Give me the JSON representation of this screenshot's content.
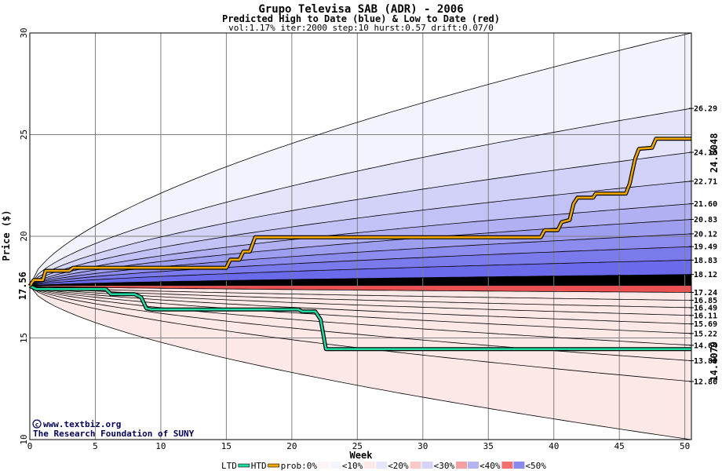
{
  "chart_data": {
    "type": "area",
    "title": "Grupo Televisa SAB (ADR) - 2006",
    "subtitle": "Predicted High to Date (blue) &  Low to Date (red)",
    "params": "vol:1.17% iter:2000 step:10 hurst:0.57 drift:0.07/0",
    "xlabel": "Week",
    "ylabel": "Price ($)",
    "xlim": [
      0,
      50.5
    ],
    "ylim": [
      10,
      30
    ],
    "x_ticks": [
      0,
      5,
      10,
      15,
      20,
      25,
      30,
      35,
      40,
      45,
      50
    ],
    "y_ticks": [
      10,
      15,
      20,
      25,
      30
    ],
    "grid": true,
    "start_price": 17.56,
    "start_price_label": "17.56",
    "right_levels": [
      26.29,
      24.13,
      22.71,
      21.6,
      20.83,
      20.12,
      19.49,
      18.83,
      18.12,
      17.24,
      16.85,
      16.49,
      16.11,
      15.69,
      15.22,
      14.64,
      13.88,
      12.86
    ],
    "right_level_labels": [
      "26.29",
      "24.13",
      "22.71",
      "21.60",
      "20.83",
      "20.12",
      "19.49",
      "18.83",
      "18.12",
      "17.24",
      "16.85",
      "16.49",
      "16.11",
      "15.69",
      "15.22",
      "14.64",
      "13.88",
      "12.86"
    ],
    "outer_upper_end": 30.0,
    "outer_lower_end": 10.0,
    "htd_final": 24.8048,
    "htd_final_label": "24.8048",
    "ltd_final": 14.4079,
    "ltd_final_label": "14.4079",
    "htd_path": [
      [
        0,
        17.56
      ],
      [
        0.3,
        17.85
      ],
      [
        1,
        17.85
      ],
      [
        1.2,
        18.3
      ],
      [
        3,
        18.3
      ],
      [
        3.3,
        18.45
      ],
      [
        15,
        18.45
      ],
      [
        15.3,
        18.85
      ],
      [
        16,
        18.85
      ],
      [
        16.3,
        19.25
      ],
      [
        16.8,
        19.25
      ],
      [
        17.2,
        19.95
      ],
      [
        39,
        19.95
      ],
      [
        39.3,
        20.3
      ],
      [
        40.3,
        20.3
      ],
      [
        40.6,
        20.7
      ],
      [
        41.2,
        20.8
      ],
      [
        41.5,
        21.6
      ],
      [
        41.8,
        21.9
      ],
      [
        43,
        21.9
      ],
      [
        43.2,
        22.1
      ],
      [
        45.5,
        22.1
      ],
      [
        45.8,
        22.6
      ],
      [
        46.2,
        23.8
      ],
      [
        46.5,
        24.3
      ],
      [
        47.5,
        24.35
      ],
      [
        47.8,
        24.8
      ],
      [
        50.5,
        24.8
      ]
    ],
    "ltd_path": [
      [
        0,
        17.56
      ],
      [
        0.5,
        17.4
      ],
      [
        5.8,
        17.4
      ],
      [
        6.2,
        17.15
      ],
      [
        8,
        17.15
      ],
      [
        8.5,
        17.0
      ],
      [
        8.9,
        16.45
      ],
      [
        9.3,
        16.4
      ],
      [
        20.5,
        16.4
      ],
      [
        20.8,
        16.3
      ],
      [
        21.8,
        16.3
      ],
      [
        22.2,
        15.9
      ],
      [
        22.6,
        14.45
      ],
      [
        50.5,
        14.45
      ]
    ],
    "legend": {
      "ltd": "LTD",
      "htd": "HTD",
      "prob0": "prob:0%",
      "items": [
        "<10%",
        "<20%",
        "<30%",
        "<40%",
        "<50%"
      ]
    },
    "colors": {
      "htd": "#f0a800",
      "ltd": "#20d8a0",
      "start_label": "#006400",
      "htd_label": "#b8860b",
      "ltd_label": "#008060",
      "credit": "#000055"
    },
    "credit_lines": [
      "www.textbiz.org",
      "The Research Foundation of SUNY"
    ]
  }
}
